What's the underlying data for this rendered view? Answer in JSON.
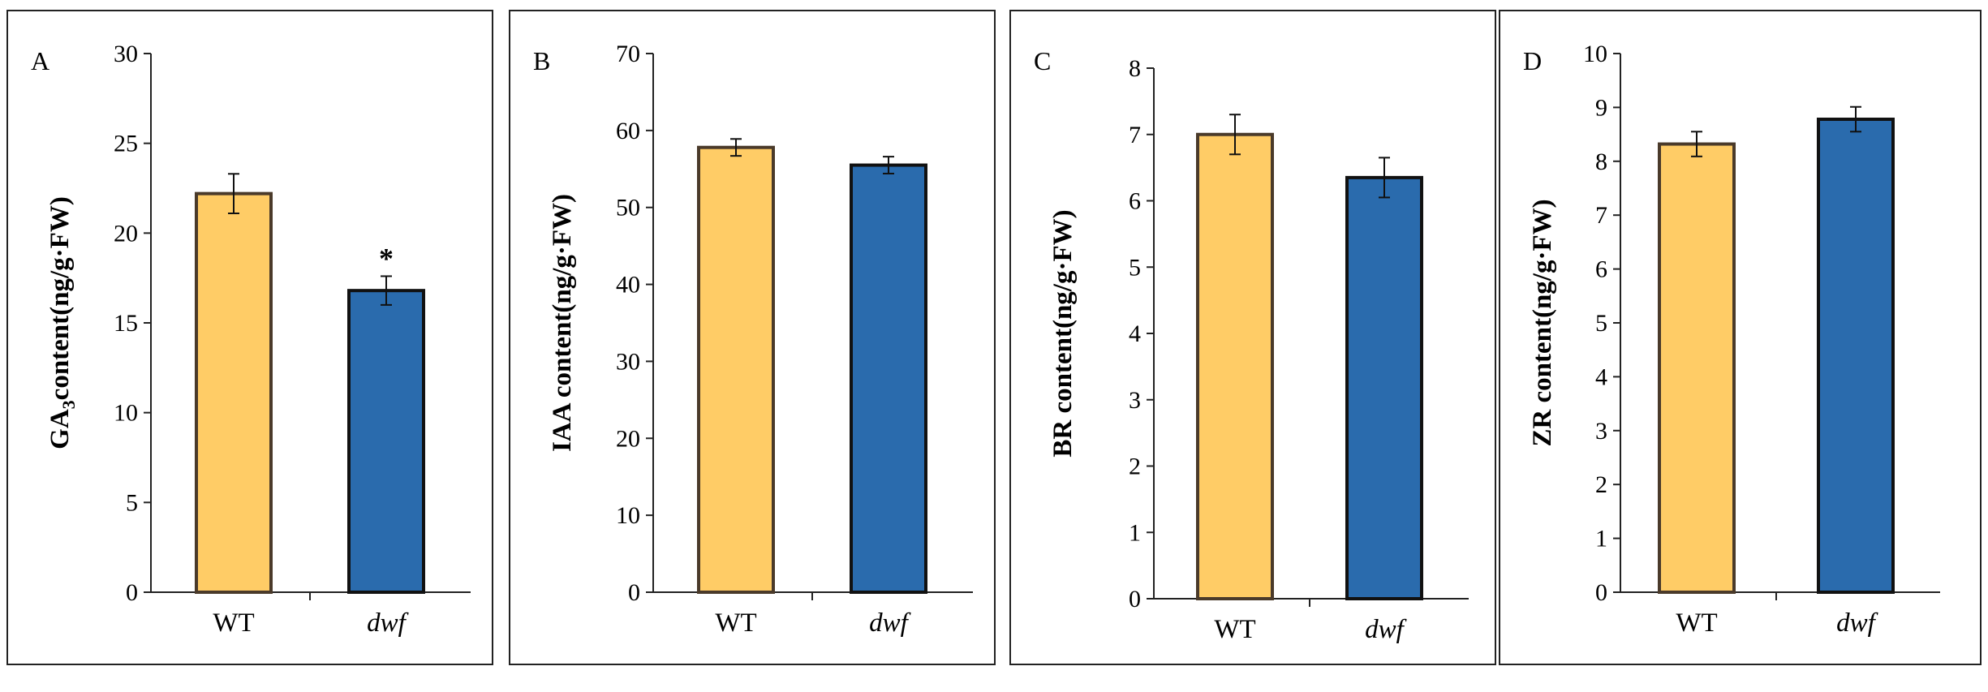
{
  "colors": {
    "wt_fill": "#FFCC66",
    "wt_edge": "#4a3a2a",
    "dwf_fill": "#2A6BAD",
    "dwf_edge": "#111111"
  },
  "chart_data": [
    {
      "type": "bar",
      "panel": "A",
      "ylabel_main": "GA",
      "ylabel_sub": "3",
      "ylabel_rest": "content(ng/g·FW)",
      "categories": [
        "WT",
        "dwf"
      ],
      "values": [
        22.2,
        16.8
      ],
      "errors": [
        1.1,
        0.8
      ],
      "annotations": [
        "",
        "*"
      ],
      "ylim": [
        0,
        30
      ],
      "yticks": [
        "0",
        "5",
        "10",
        "15",
        "20",
        "25",
        "30"
      ],
      "ystep": 5
    },
    {
      "type": "bar",
      "panel": "B",
      "ylabel_main": "IAA content(ng/g·FW)",
      "ylabel_sub": "",
      "ylabel_rest": "",
      "categories": [
        "WT",
        "dwf"
      ],
      "values": [
        57.8,
        55.5
      ],
      "errors": [
        1.1,
        1.1
      ],
      "annotations": [
        "",
        ""
      ],
      "ylim": [
        0,
        70
      ],
      "yticks": [
        "0",
        "10",
        "20",
        "30",
        "40",
        "50",
        "60",
        "70"
      ],
      "ystep": 10
    },
    {
      "type": "bar",
      "panel": "C",
      "ylabel_main": "BR content(ng/g·FW)",
      "ylabel_sub": "",
      "ylabel_rest": "",
      "categories": [
        "WT",
        "dwf"
      ],
      "values": [
        7.0,
        6.35
      ],
      "errors": [
        0.3,
        0.3
      ],
      "annotations": [
        "",
        ""
      ],
      "ylim": [
        0,
        8
      ],
      "yticks": [
        "0",
        "1",
        "2",
        "3",
        "4",
        "5",
        "6",
        "7",
        "8"
      ],
      "ystep": 1
    },
    {
      "type": "bar",
      "panel": "D",
      "ylabel_main": "ZR content(ng/g·FW)",
      "ylabel_sub": "",
      "ylabel_rest": "",
      "categories": [
        "WT",
        "dwf"
      ],
      "values": [
        8.32,
        8.78
      ],
      "errors": [
        0.23,
        0.23
      ],
      "annotations": [
        "",
        ""
      ],
      "ylim": [
        0,
        10
      ],
      "yticks": [
        "0",
        "1",
        "2",
        "3",
        "4",
        "5",
        "6",
        "7",
        "8",
        "9",
        "10"
      ],
      "ystep": 1
    }
  ]
}
